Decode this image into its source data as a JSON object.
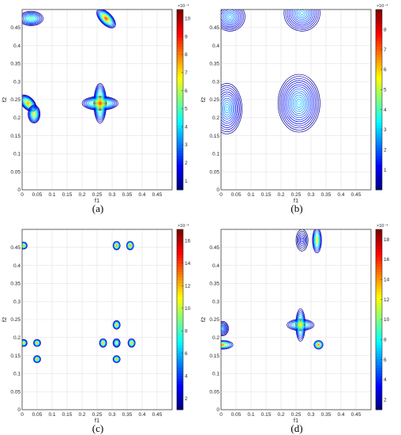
{
  "chart_data": [
    {
      "type": "contour",
      "panel_label": "(a)",
      "xlabel": "f1",
      "ylabel": "f2",
      "xlim": [
        0,
        0.5
      ],
      "ylim": [
        0,
        0.5
      ],
      "xticks": [
        "0",
        "0.05",
        "0.1",
        "0.15",
        "0.2",
        "0.25",
        "0.3",
        "0.35",
        "0.4",
        "0.45"
      ],
      "yticks": [
        "0",
        "0.05",
        "0.1",
        "0.15",
        "0.2",
        "0.25",
        "0.3",
        "0.35",
        "0.4",
        "0.45"
      ],
      "grid": true,
      "colorbar": {
        "range": [
          0.5,
          10.5
        ],
        "ticks": [
          "1",
          "2",
          "3",
          "4",
          "5",
          "6",
          "7",
          "8",
          "9",
          "10"
        ],
        "exponent": "×10⁻⁴"
      },
      "peaks": [
        {
          "x": 0.02,
          "y": 0.24,
          "sx": 0.034,
          "sy": 0.03,
          "value": 8.5,
          "levels": 12,
          "shape": "diag"
        },
        {
          "x": 0.04,
          "y": 0.21,
          "sx": 0.02,
          "sy": 0.025,
          "value": 7.5,
          "levels": 10,
          "shape": "ellipse"
        },
        {
          "x": 0.26,
          "y": 0.24,
          "sx": 0.06,
          "sy": 0.055,
          "value": 9.0,
          "levels": 13,
          "shape": "cross"
        },
        {
          "x": 0.03,
          "y": 0.475,
          "sx": 0.04,
          "sy": 0.02,
          "value": 6.0,
          "levels": 9,
          "shape": "ellipse"
        },
        {
          "x": 0.28,
          "y": 0.475,
          "sx": 0.04,
          "sy": 0.03,
          "value": 9.5,
          "levels": 12,
          "shape": "diag"
        }
      ]
    },
    {
      "type": "contour",
      "panel_label": "(b)",
      "xlabel": "f1",
      "ylabel": "f2",
      "xlim": [
        0,
        0.5
      ],
      "ylim": [
        0,
        0.5
      ],
      "xticks": [
        "0",
        "0.05",
        "0.1",
        "0.15",
        "0.2",
        "0.25",
        "0.3",
        "0.35",
        "0.4",
        "0.45"
      ],
      "yticks": [
        "0",
        "0.05",
        "0.1",
        "0.15",
        "0.2",
        "0.25",
        "0.3",
        "0.35",
        "0.4",
        "0.45"
      ],
      "grid": true,
      "colorbar": {
        "range": [
          0,
          9
        ],
        "ticks": [
          "1",
          "2",
          "3",
          "4",
          "5",
          "6",
          "7",
          "8"
        ],
        "exponent": "×10⁻⁴"
      },
      "peaks": [
        {
          "x": 0.02,
          "y": 0.225,
          "sx": 0.05,
          "sy": 0.07,
          "value": 3.0,
          "levels": 12,
          "shape": "ellipse"
        },
        {
          "x": 0.26,
          "y": 0.24,
          "sx": 0.07,
          "sy": 0.08,
          "value": 3.2,
          "levels": 14,
          "shape": "ellipse"
        },
        {
          "x": 0.03,
          "y": 0.48,
          "sx": 0.05,
          "sy": 0.04,
          "value": 3.0,
          "levels": 10,
          "shape": "ellipse"
        },
        {
          "x": 0.27,
          "y": 0.49,
          "sx": 0.06,
          "sy": 0.05,
          "value": 3.0,
          "levels": 11,
          "shape": "ellipse"
        }
      ]
    },
    {
      "type": "contour",
      "panel_label": "(c)",
      "xlabel": "f1",
      "ylabel": "f2",
      "xlim": [
        0,
        0.5
      ],
      "ylim": [
        0,
        0.5
      ],
      "xticks": [
        "0",
        "0.05",
        "0.1",
        "0.15",
        "0.2",
        "0.25",
        "0.3",
        "0.35",
        "0.4",
        "0.45"
      ],
      "yticks": [
        "0",
        "0.05",
        "0.1",
        "0.15",
        "0.2",
        "0.25",
        "0.3",
        "0.35",
        "0.4",
        "0.45"
      ],
      "grid": true,
      "colorbar": {
        "range": [
          1,
          17
        ],
        "ticks": [
          "2",
          "4",
          "6",
          "8",
          "10",
          "12",
          "14",
          "16"
        ],
        "exponent": "×10⁻⁴"
      },
      "peaks": [
        {
          "x": 0.005,
          "y": 0.185,
          "sx": 0.012,
          "sy": 0.01,
          "value": 13,
          "levels": 7,
          "shape": "ellipse"
        },
        {
          "x": 0.05,
          "y": 0.185,
          "sx": 0.012,
          "sy": 0.01,
          "value": 14,
          "levels": 7,
          "shape": "ellipse"
        },
        {
          "x": 0.05,
          "y": 0.14,
          "sx": 0.012,
          "sy": 0.01,
          "value": 14,
          "levels": 7,
          "shape": "ellipse"
        },
        {
          "x": 0.005,
          "y": 0.455,
          "sx": 0.012,
          "sy": 0.01,
          "value": 14,
          "levels": 7,
          "shape": "ellipse"
        },
        {
          "x": 0.27,
          "y": 0.185,
          "sx": 0.012,
          "sy": 0.012,
          "value": 14,
          "levels": 7,
          "shape": "ellipse"
        },
        {
          "x": 0.315,
          "y": 0.185,
          "sx": 0.012,
          "sy": 0.012,
          "value": 12,
          "levels": 7,
          "shape": "ellipse"
        },
        {
          "x": 0.365,
          "y": 0.185,
          "sx": 0.012,
          "sy": 0.012,
          "value": 14,
          "levels": 7,
          "shape": "ellipse"
        },
        {
          "x": 0.315,
          "y": 0.235,
          "sx": 0.012,
          "sy": 0.012,
          "value": 14,
          "levels": 7,
          "shape": "ellipse"
        },
        {
          "x": 0.315,
          "y": 0.14,
          "sx": 0.012,
          "sy": 0.01,
          "value": 14,
          "levels": 7,
          "shape": "ellipse"
        },
        {
          "x": 0.315,
          "y": 0.455,
          "sx": 0.012,
          "sy": 0.012,
          "value": 15,
          "levels": 7,
          "shape": "ellipse"
        },
        {
          "x": 0.36,
          "y": 0.455,
          "sx": 0.012,
          "sy": 0.012,
          "value": 15,
          "levels": 7,
          "shape": "ellipse"
        }
      ]
    },
    {
      "type": "contour",
      "panel_label": "(d)",
      "xlabel": "f1",
      "ylabel": "f2",
      "xlim": [
        0,
        0.5
      ],
      "ylim": [
        0,
        0.5
      ],
      "xticks": [
        "0",
        "0.05",
        "0.1",
        "0.15",
        "0.2",
        "0.25",
        "0.3",
        "0.35",
        "0.4",
        "0.45"
      ],
      "yticks": [
        "0",
        "0.05",
        "0.1",
        "0.15",
        "0.2",
        "0.25",
        "0.3",
        "0.35",
        "0.4",
        "0.45"
      ],
      "grid": true,
      "colorbar": {
        "range": [
          1,
          19
        ],
        "ticks": [
          "2",
          "4",
          "6",
          "8",
          "10",
          "12",
          "14",
          "16",
          "18"
        ],
        "exponent": "×10⁻⁴"
      },
      "peaks": [
        {
          "x": 0.005,
          "y": 0.18,
          "sx": 0.035,
          "sy": 0.012,
          "value": 16,
          "levels": 8,
          "shape": "ellipse"
        },
        {
          "x": 0.005,
          "y": 0.225,
          "sx": 0.02,
          "sy": 0.02,
          "value": 7,
          "levels": 8,
          "shape": "ellipse"
        },
        {
          "x": 0.265,
          "y": 0.235,
          "sx": 0.045,
          "sy": 0.045,
          "value": 14,
          "levels": 9,
          "shape": "cross"
        },
        {
          "x": 0.325,
          "y": 0.18,
          "sx": 0.015,
          "sy": 0.012,
          "value": 17,
          "levels": 7,
          "shape": "ellipse"
        },
        {
          "x": 0.32,
          "y": 0.47,
          "sx": 0.015,
          "sy": 0.035,
          "value": 14,
          "levels": 8,
          "shape": "ellipse"
        },
        {
          "x": 0.27,
          "y": 0.47,
          "sx": 0.02,
          "sy": 0.03,
          "value": 4,
          "levels": 6,
          "shape": "ellipse"
        }
      ]
    }
  ]
}
